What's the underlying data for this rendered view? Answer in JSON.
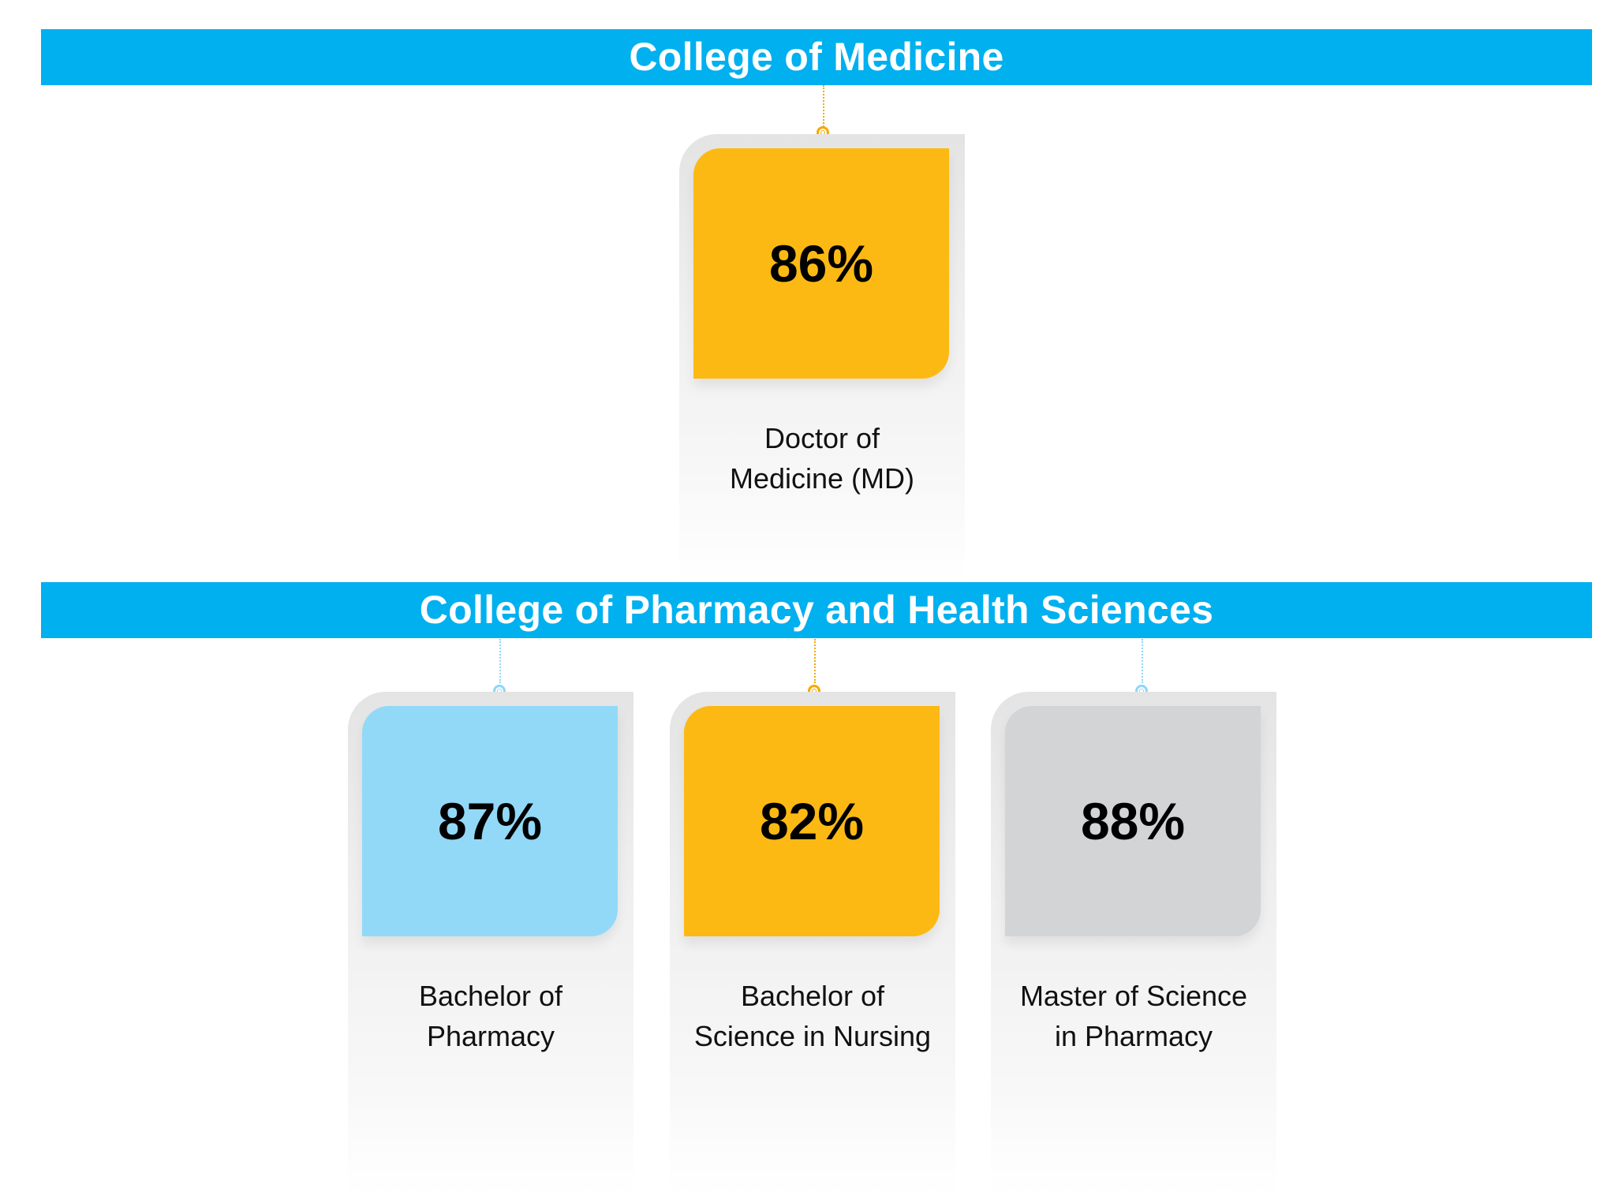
{
  "colors": {
    "banner": "#00b0ef",
    "gold": "#fdb913",
    "light_blue": "#92d9f8",
    "gray": "#d3d4d6",
    "gold_accent": "#f5a800",
    "blue_accent": "#8fd6f6"
  },
  "sections": [
    {
      "title": "College of Medicine",
      "programs": [
        {
          "value": "86%",
          "label_line1": "Doctor of",
          "label_line2": "Medicine (MD)",
          "color": "gold"
        }
      ]
    },
    {
      "title": "College of Pharmacy and Health Sciences",
      "programs": [
        {
          "value": "87%",
          "label_line1": "Bachelor of",
          "label_line2": "Pharmacy",
          "color": "light_blue"
        },
        {
          "value": "82%",
          "label_line1": "Bachelor of",
          "label_line2": "Science in Nursing",
          "color": "gold"
        },
        {
          "value": "88%",
          "label_line1": "Master of Science",
          "label_line2": "in Pharmacy",
          "color": "gray"
        }
      ]
    }
  ]
}
